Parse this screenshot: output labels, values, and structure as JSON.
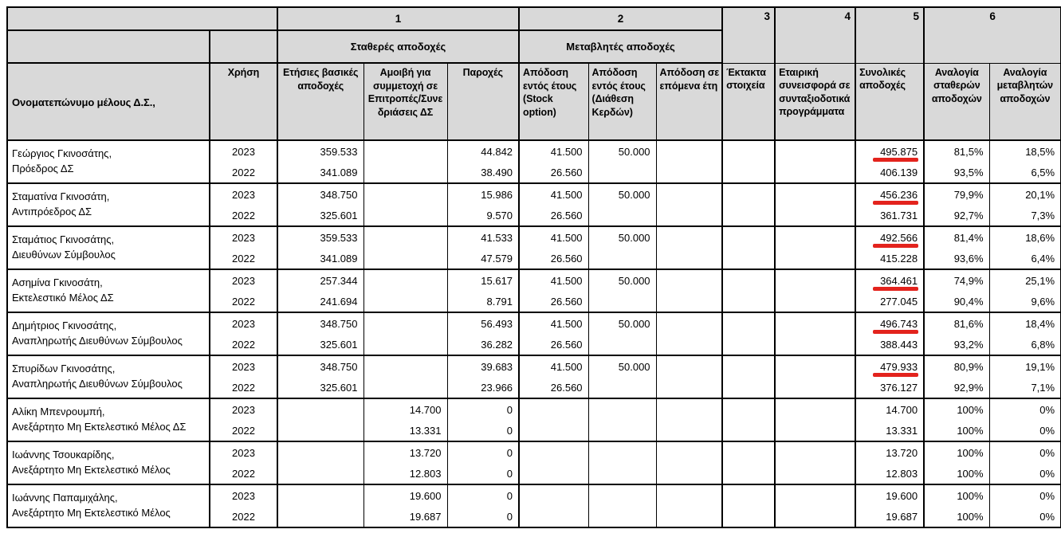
{
  "table": {
    "group_numbers": [
      "1",
      "2",
      "3",
      "4",
      "5",
      "6"
    ],
    "group_headers": {
      "fixed": "Σταθερές αποδοχές",
      "variable": "Μεταβλητές αποδοχές"
    },
    "column_headers": {
      "name": "Ονοματεπώνυμο μέλους Δ.Σ.,",
      "year": "Χρήση",
      "annual_basic": "Ετήσιες βασικές\nαποδοχές",
      "committee": "Αμοιβή για\nσυμμετοχή σε\nΕπιτροπές/Συνε\nδριάσεις ΔΣ",
      "benefits": "Παροχές",
      "stock_option": "Απόδοση\nεντός έτους\n(Stock\noption)",
      "profit_distribution": "Απόδοση\nεντός έτους\n(Διάθεση\nΚερδών)",
      "future_years": "Απόδοση σε\nεπόμενα έτη",
      "extraordinary": "Έκτακτα\nστοιχεία",
      "pension": "Εταιρική\nσυνεισφορά σε\nσυνταξιοδοτικά\nπρογράμματα",
      "total": "Συνολικές\nαποδοχές",
      "fixed_ratio": "Αναλογία\nσταθερών\nαποδοχών",
      "variable_ratio": "Αναλογία\nμεταβλητών\nαποδοχών"
    },
    "colors": {
      "header_fill": "#d9d9d9",
      "border": "#000000",
      "annotation_red": "#e3231d"
    },
    "members": [
      {
        "name": "Γεώργιος Γκινοσάτης,",
        "role": "Πρόεδρος ΔΣ",
        "rows": [
          {
            "year": "2023",
            "cells": [
              "359.533",
              "",
              "44.842",
              "41.500",
              "50.000",
              "",
              "",
              "",
              "495.875",
              "81,5%",
              "18,5%"
            ],
            "total_marked": true
          },
          {
            "year": "2022",
            "cells": [
              "341.089",
              "",
              "38.490",
              "26.560",
              "",
              "",
              "",
              "",
              "406.139",
              "93,5%",
              "6,5%"
            ],
            "total_marked": false
          }
        ]
      },
      {
        "name": "Σταματίνα Γκινοσάτη,",
        "role": "Αντιπρόεδρος ΔΣ",
        "rows": [
          {
            "year": "2023",
            "cells": [
              "348.750",
              "",
              "15.986",
              "41.500",
              "50.000",
              "",
              "",
              "",
              "456.236",
              "79,9%",
              "20,1%"
            ],
            "total_marked": true
          },
          {
            "year": "2022",
            "cells": [
              "325.601",
              "",
              "9.570",
              "26.560",
              "",
              "",
              "",
              "",
              "361.731",
              "92,7%",
              "7,3%"
            ],
            "total_marked": false
          }
        ]
      },
      {
        "name": "Σταμάτιος Γκινοσάτης,",
        "role": "Διευθύνων Σύμβουλος",
        "rows": [
          {
            "year": "2023",
            "cells": [
              "359.533",
              "",
              "41.533",
              "41.500",
              "50.000",
              "",
              "",
              "",
              "492.566",
              "81,4%",
              "18,6%"
            ],
            "total_marked": true
          },
          {
            "year": "2022",
            "cells": [
              "341.089",
              "",
              "47.579",
              "26.560",
              "",
              "",
              "",
              "",
              "415.228",
              "93,6%",
              "6,4%"
            ],
            "total_marked": false
          }
        ]
      },
      {
        "name": "Ασημίνα Γκινοσάτη,",
        "role": "Εκτελεστικό Μέλος ΔΣ",
        "rows": [
          {
            "year": "2023",
            "cells": [
              "257.344",
              "",
              "15.617",
              "41.500",
              "50.000",
              "",
              "",
              "",
              "364.461",
              "74,9%",
              "25,1%"
            ],
            "total_marked": true
          },
          {
            "year": "2022",
            "cells": [
              "241.694",
              "",
              "8.791",
              "26.560",
              "",
              "",
              "",
              "",
              "277.045",
              "90,4%",
              "9,6%"
            ],
            "total_marked": false
          }
        ]
      },
      {
        "name": "Δημήτριος Γκινοσάτης,",
        "role": "Αναπληρωτής Διευθύνων Σύμβουλος",
        "rows": [
          {
            "year": "2023",
            "cells": [
              "348.750",
              "",
              "56.493",
              "41.500",
              "50.000",
              "",
              "",
              "",
              "496.743",
              "81,6%",
              "18,4%"
            ],
            "total_marked": true
          },
          {
            "year": "2022",
            "cells": [
              "325.601",
              "",
              "36.282",
              "26.560",
              "",
              "",
              "",
              "",
              "388.443",
              "93,2%",
              "6,8%"
            ],
            "total_marked": false
          }
        ]
      },
      {
        "name": "Σπυρίδων Γκινοσάτης,",
        "role": "Αναπληρωτής Διευθύνων Σύμβουλος",
        "rows": [
          {
            "year": "2023",
            "cells": [
              "348.750",
              "",
              "39.683",
              "41.500",
              "50.000",
              "",
              "",
              "",
              "479.933",
              "80,9%",
              "19,1%"
            ],
            "total_marked": true
          },
          {
            "year": "2022",
            "cells": [
              "325.601",
              "",
              "23.966",
              "26.560",
              "",
              "",
              "",
              "",
              "376.127",
              "92,9%",
              "7,1%"
            ],
            "total_marked": false
          }
        ]
      },
      {
        "name": "Αλίκη Μπενρουμπή,",
        "role": "Ανεξάρτητο Μη Εκτελεστικό Μέλος ΔΣ",
        "rows": [
          {
            "year": "2023",
            "cells": [
              "",
              "14.700",
              "0",
              "",
              "",
              "",
              "",
              "",
              "14.700",
              "100%",
              "0%"
            ],
            "total_marked": false
          },
          {
            "year": "2022",
            "cells": [
              "",
              "13.331",
              "0",
              "",
              "",
              "",
              "",
              "",
              "13.331",
              "100%",
              "0%"
            ],
            "total_marked": false
          }
        ]
      },
      {
        "name": "Ιωάννης Τσουκαρίδης,",
        "role": "Ανεξάρτητο Μη Εκτελεστικό Μέλος",
        "rows": [
          {
            "year": "2023",
            "cells": [
              "",
              "13.720",
              "0",
              "",
              "",
              "",
              "",
              "",
              "13.720",
              "100%",
              "0%"
            ],
            "total_marked": false
          },
          {
            "year": "2022",
            "cells": [
              "",
              "12.803",
              "0",
              "",
              "",
              "",
              "",
              "",
              "12.803",
              "100%",
              "0%"
            ],
            "total_marked": false
          }
        ]
      },
      {
        "name": "Ιωάννης Παπαμιχάλης,",
        "role": "Ανεξάρτητο Μη Εκτελεστικό Μέλος",
        "rows": [
          {
            "year": "2023",
            "cells": [
              "",
              "19.600",
              "0",
              "",
              "",
              "",
              "",
              "",
              "19.600",
              "100%",
              "0%"
            ],
            "total_marked": false
          },
          {
            "year": "2022",
            "cells": [
              "",
              "19.687",
              "0",
              "",
              "",
              "",
              "",
              "",
              "19.687",
              "100%",
              "0%"
            ],
            "total_marked": false
          }
        ]
      }
    ]
  }
}
